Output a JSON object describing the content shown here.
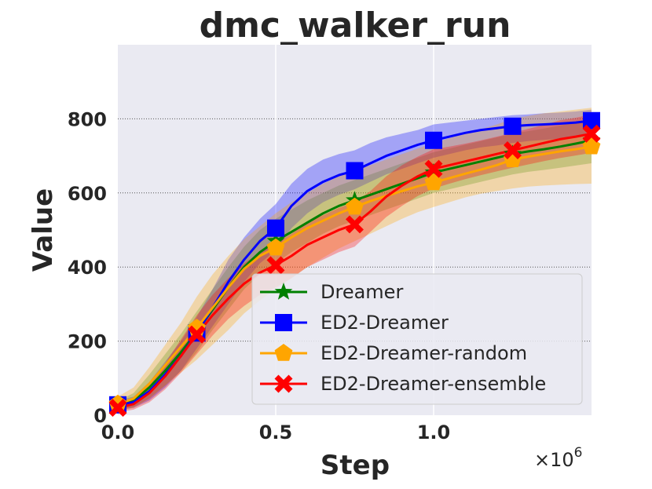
{
  "chart_data": {
    "type": "line",
    "title": "dmc_walker_run",
    "xlabel": "Step",
    "ylabel": "Value",
    "x_multiplier_label": "×10",
    "x_multiplier_exponent": "6",
    "xlim": [
      0,
      1.5
    ],
    "ylim": [
      0,
      1000
    ],
    "xticks": [
      0.0,
      0.5,
      1.0
    ],
    "xtick_labels": [
      "0.0",
      "0.5",
      "1.0"
    ],
    "yticks": [
      0,
      200,
      400,
      600,
      800
    ],
    "ytick_labels": [
      "0",
      "200",
      "400",
      "600",
      "800"
    ],
    "grid": true,
    "legend_position": "lower-right",
    "background_color": "#eaeaf2",
    "x": [
      0,
      0.25,
      0.5,
      0.75,
      1.0,
      1.25,
      1.5
    ],
    "series": [
      {
        "name": "Dreamer",
        "color": "#008000",
        "marker": "star",
        "x": [
          0,
          0.05,
          0.1,
          0.15,
          0.2,
          0.25,
          0.3,
          0.35,
          0.4,
          0.45,
          0.5,
          0.55,
          0.6,
          0.65,
          0.7,
          0.75,
          0.8,
          0.85,
          0.9,
          0.95,
          1.0,
          1.05,
          1.1,
          1.15,
          1.2,
          1.25,
          1.3,
          1.35,
          1.4,
          1.45,
          1.5
        ],
        "values": [
          25,
          40,
          75,
          120,
          170,
          225,
          285,
          345,
          400,
          440,
          470,
          495,
          520,
          545,
          565,
          580,
          595,
          610,
          625,
          640,
          655,
          665,
          675,
          685,
          695,
          705,
          712,
          718,
          725,
          733,
          742
        ],
        "lower": [
          12,
          22,
          45,
          80,
          120,
          170,
          230,
          285,
          340,
          380,
          410,
          440,
          465,
          490,
          510,
          525,
          540,
          555,
          570,
          585,
          600,
          610,
          620,
          630,
          640,
          650,
          657,
          662,
          668,
          674,
          680
        ],
        "upper": [
          38,
          60,
          110,
          165,
          220,
          280,
          340,
          400,
          455,
          500,
          530,
          555,
          580,
          600,
          620,
          635,
          650,
          665,
          680,
          695,
          710,
          720,
          730,
          740,
          750,
          760,
          767,
          774,
          782,
          790,
          800
        ]
      },
      {
        "name": "ED2-Dreamer",
        "color": "#0000ff",
        "marker": "square",
        "x": [
          0,
          0.05,
          0.1,
          0.15,
          0.2,
          0.25,
          0.3,
          0.35,
          0.4,
          0.45,
          0.5,
          0.55,
          0.6,
          0.65,
          0.7,
          0.75,
          0.8,
          0.85,
          0.9,
          0.95,
          1.0,
          1.05,
          1.1,
          1.15,
          1.2,
          1.25,
          1.3,
          1.35,
          1.4,
          1.45,
          1.5
        ],
        "values": [
          28,
          35,
          65,
          110,
          160,
          222,
          290,
          360,
          420,
          470,
          505,
          565,
          605,
          630,
          648,
          660,
          680,
          700,
          715,
          730,
          742,
          752,
          762,
          770,
          775,
          780,
          783,
          785,
          787,
          790,
          795
        ],
        "lower": [
          15,
          20,
          40,
          75,
          120,
          180,
          240,
          300,
          360,
          410,
          445,
          505,
          545,
          575,
          595,
          610,
          630,
          650,
          665,
          680,
          695,
          705,
          715,
          723,
          728,
          735,
          740,
          743,
          746,
          750,
          755
        ],
        "upper": [
          40,
          50,
          90,
          145,
          200,
          265,
          340,
          420,
          480,
          530,
          570,
          625,
          665,
          690,
          705,
          715,
          735,
          750,
          760,
          770,
          785,
          790,
          795,
          800,
          805,
          810,
          812,
          815,
          817,
          820,
          825
        ]
      },
      {
        "name": "ED2-Dreamer-random",
        "color": "#ffa500",
        "marker": "pentagon",
        "x": [
          0,
          0.05,
          0.1,
          0.15,
          0.2,
          0.25,
          0.3,
          0.35,
          0.4,
          0.45,
          0.5,
          0.55,
          0.6,
          0.65,
          0.7,
          0.75,
          0.8,
          0.85,
          0.9,
          0.95,
          1.0,
          1.05,
          1.1,
          1.15,
          1.2,
          1.25,
          1.3,
          1.35,
          1.4,
          1.45,
          1.5
        ],
        "values": [
          30,
          45,
          85,
          135,
          185,
          235,
          290,
          345,
          395,
          430,
          452,
          480,
          505,
          525,
          545,
          562,
          578,
          592,
          605,
          618,
          628,
          640,
          652,
          663,
          675,
          690,
          698,
          705,
          712,
          718,
          725
        ],
        "lower": [
          10,
          20,
          45,
          80,
          115,
          150,
          190,
          230,
          275,
          310,
          340,
          370,
          400,
          425,
          450,
          470,
          490,
          510,
          530,
          548,
          562,
          575,
          588,
          598,
          605,
          612,
          617,
          620,
          622,
          624,
          625
        ],
        "upper": [
          50,
          75,
          130,
          190,
          250,
          320,
          380,
          430,
          475,
          510,
          545,
          575,
          600,
          625,
          645,
          660,
          675,
          690,
          705,
          720,
          735,
          748,
          760,
          772,
          785,
          800,
          808,
          815,
          820,
          825,
          830
        ]
      },
      {
        "name": "ED2-Dreamer-ensemble",
        "color": "#ff0000",
        "marker": "x",
        "x": [
          0,
          0.05,
          0.1,
          0.15,
          0.2,
          0.25,
          0.3,
          0.35,
          0.4,
          0.45,
          0.5,
          0.55,
          0.6,
          0.65,
          0.7,
          0.75,
          0.8,
          0.85,
          0.9,
          0.95,
          1.0,
          1.05,
          1.1,
          1.15,
          1.2,
          1.25,
          1.3,
          1.35,
          1.4,
          1.45,
          1.5
        ],
        "values": [
          20,
          30,
          60,
          105,
          160,
          218,
          270,
          315,
          355,
          385,
          405,
          430,
          460,
          480,
          500,
          515,
          550,
          590,
          620,
          645,
          665,
          675,
          685,
          695,
          705,
          715,
          725,
          735,
          745,
          752,
          760
        ],
        "lower": [
          8,
          15,
          35,
          70,
          115,
          165,
          215,
          260,
          295,
          325,
          345,
          370,
          400,
          420,
          440,
          455,
          495,
          535,
          565,
          592,
          612,
          625,
          637,
          648,
          658,
          668,
          677,
          686,
          694,
          701,
          708
        ],
        "upper": [
          32,
          45,
          85,
          140,
          205,
          270,
          325,
          370,
          410,
          440,
          465,
          490,
          520,
          540,
          560,
          575,
          605,
          645,
          675,
          698,
          718,
          725,
          733,
          742,
          752,
          762,
          773,
          784,
          796,
          803,
          812
        ]
      }
    ],
    "marker_x": [
      0,
      0.25,
      0.5,
      0.75,
      1.0,
      1.25,
      1.5
    ]
  }
}
